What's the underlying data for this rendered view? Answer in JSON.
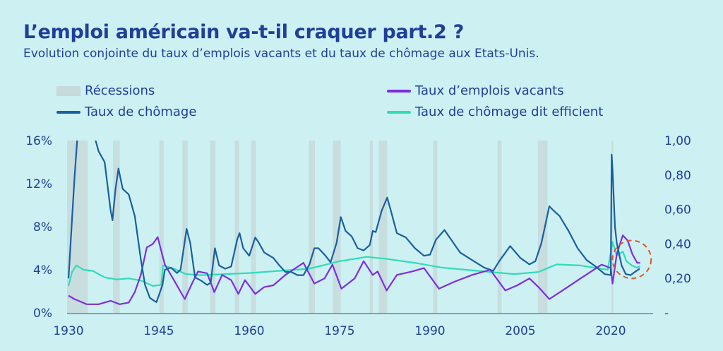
{
  "header": {
    "title": "L’emploi américain va-t-il craquer part.2 ?",
    "subtitle": "Evolution conjointe du taux d’emplois vacants et du taux de chômage aux Etats-Unis."
  },
  "colors": {
    "background": "#cdf1f2",
    "recession": "#c7d9da",
    "unemployment": "#1a5fa0",
    "vacancies": "#7b2fe0",
    "efficient": "#2fdcb8",
    "highlight": "#e2542a",
    "text": "#1f3f9a"
  },
  "chart_data": {
    "type": "line",
    "legend": [
      {
        "key": "recessions",
        "label": "Récessions",
        "marker": "band"
      },
      {
        "key": "vacancies",
        "label": "Taux d’emplois vacants",
        "marker": "line"
      },
      {
        "key": "unemployment",
        "label": "Taux de chômage",
        "marker": "line"
      },
      {
        "key": "efficient",
        "label": "Taux de chômage dit efficient",
        "marker": "line"
      }
    ],
    "legend_position": "top",
    "x_ticks": [
      "1930",
      "1945",
      "1960",
      "1975",
      "1990",
      "2005",
      "2020"
    ],
    "x_range": [
      1930,
      2025
    ],
    "y_left_ticks": [
      "0%",
      "4%",
      "8%",
      "12%",
      "16%"
    ],
    "y_left_range": [
      0,
      16
    ],
    "y_right_ticks": [
      "-",
      "0,20",
      "0,40",
      "0,60",
      "0,80",
      "1,00"
    ],
    "y_right_range": [
      0,
      1
    ],
    "recessions": [
      [
        1929.6,
        1933.2
      ],
      [
        1937.4,
        1938.5
      ],
      [
        1945.1,
        1945.8
      ],
      [
        1948.9,
        1949.8
      ],
      [
        1953.5,
        1954.4
      ],
      [
        1957.6,
        1958.3
      ],
      [
        1960.3,
        1961.1
      ],
      [
        1969.9,
        1970.9
      ],
      [
        1973.9,
        1975.2
      ],
      [
        1980.0,
        1980.5
      ],
      [
        1981.5,
        1982.9
      ],
      [
        1990.5,
        1991.2
      ],
      [
        2001.2,
        2001.9
      ],
      [
        2007.9,
        2009.5
      ],
      [
        2020.1,
        2020.4
      ]
    ],
    "series": [
      {
        "key": "unemployment",
        "name": "Taux de chômage",
        "axis": "left",
        "points": [
          [
            1930.0,
            3.2
          ],
          [
            1930.2,
            5.0
          ],
          [
            1930.6,
            8.8
          ],
          [
            1931.0,
            12.5
          ],
          [
            1931.5,
            16.5
          ],
          [
            1932.0,
            16.5
          ],
          [
            1933.0,
            16.5
          ],
          [
            1934.0,
            16.5
          ],
          [
            1934.5,
            16.0
          ],
          [
            1935.0,
            15.0
          ],
          [
            1936.0,
            14.0
          ],
          [
            1937.0,
            9.5
          ],
          [
            1937.3,
            8.6
          ],
          [
            1937.8,
            11.5
          ],
          [
            1938.3,
            13.4
          ],
          [
            1939.0,
            11.5
          ],
          [
            1940.0,
            11.0
          ],
          [
            1941.0,
            9.0
          ],
          [
            1942.0,
            5.0
          ],
          [
            1942.7,
            2.6
          ],
          [
            1943.5,
            1.4
          ],
          [
            1944.0,
            1.2
          ],
          [
            1944.6,
            1.0
          ],
          [
            1945.1,
            1.8
          ],
          [
            1945.6,
            2.6
          ],
          [
            1946.0,
            4.0
          ],
          [
            1947.0,
            4.2
          ],
          [
            1948.0,
            3.7
          ],
          [
            1948.6,
            4.0
          ],
          [
            1949.6,
            7.8
          ],
          [
            1950.2,
            6.5
          ],
          [
            1951.0,
            3.3
          ],
          [
            1952.0,
            3.0
          ],
          [
            1953.0,
            2.6
          ],
          [
            1953.6,
            2.8
          ],
          [
            1954.3,
            6.0
          ],
          [
            1955.0,
            4.4
          ],
          [
            1956.0,
            4.1
          ],
          [
            1957.0,
            4.3
          ],
          [
            1958.0,
            6.8
          ],
          [
            1958.4,
            7.4
          ],
          [
            1959.0,
            6.0
          ],
          [
            1960.0,
            5.3
          ],
          [
            1961.0,
            7.0
          ],
          [
            1961.5,
            6.6
          ],
          [
            1962.5,
            5.6
          ],
          [
            1964.0,
            5.1
          ],
          [
            1965.0,
            4.4
          ],
          [
            1966.0,
            3.8
          ],
          [
            1967.0,
            3.8
          ],
          [
            1968.0,
            3.5
          ],
          [
            1969.0,
            3.5
          ],
          [
            1970.0,
            4.5
          ],
          [
            1970.8,
            6.0
          ],
          [
            1971.5,
            6.0
          ],
          [
            1972.5,
            5.4
          ],
          [
            1973.5,
            4.7
          ],
          [
            1974.5,
            6.5
          ],
          [
            1975.2,
            8.9
          ],
          [
            1976.0,
            7.6
          ],
          [
            1977.0,
            7.1
          ],
          [
            1978.0,
            6.0
          ],
          [
            1979.0,
            5.8
          ],
          [
            1980.0,
            6.3
          ],
          [
            1980.5,
            7.6
          ],
          [
            1981.0,
            7.5
          ],
          [
            1982.0,
            9.5
          ],
          [
            1982.9,
            10.7
          ],
          [
            1983.5,
            9.5
          ],
          [
            1984.5,
            7.4
          ],
          [
            1986.0,
            7.0
          ],
          [
            1987.5,
            6.0
          ],
          [
            1989.0,
            5.3
          ],
          [
            1990.0,
            5.4
          ],
          [
            1991.0,
            6.8
          ],
          [
            1992.4,
            7.7
          ],
          [
            1993.5,
            6.8
          ],
          [
            1995.0,
            5.6
          ],
          [
            1997.0,
            4.9
          ],
          [
            1999.0,
            4.2
          ],
          [
            2000.5,
            3.9
          ],
          [
            2001.5,
            4.8
          ],
          [
            2003.3,
            6.2
          ],
          [
            2005.0,
            5.1
          ],
          [
            2006.5,
            4.5
          ],
          [
            2007.5,
            4.8
          ],
          [
            2008.5,
            6.5
          ],
          [
            2009.8,
            9.9
          ],
          [
            2010.5,
            9.5
          ],
          [
            2011.5,
            9.0
          ],
          [
            2013.0,
            7.6
          ],
          [
            2014.5,
            6.0
          ],
          [
            2016.0,
            4.9
          ],
          [
            2017.5,
            4.3
          ],
          [
            2019.0,
            3.6
          ],
          [
            2020.0,
            3.5
          ],
          [
            2020.15,
            14.7
          ],
          [
            2020.3,
            13.2
          ],
          [
            2020.7,
            8.0
          ],
          [
            2021.0,
            6.5
          ],
          [
            2021.8,
            4.4
          ],
          [
            2022.5,
            3.6
          ],
          [
            2023.3,
            3.5
          ],
          [
            2024.0,
            3.8
          ],
          [
            2024.8,
            4.1
          ]
        ]
      },
      {
        "key": "vacancies",
        "name": "Taux d’emplois vacants",
        "axis": "right",
        "points": [
          [
            1930.0,
            0.1
          ],
          [
            1931.0,
            0.08
          ],
          [
            1933.0,
            0.05
          ],
          [
            1935.0,
            0.05
          ],
          [
            1937.0,
            0.07
          ],
          [
            1938.5,
            0.05
          ],
          [
            1940.0,
            0.06
          ],
          [
            1941.0,
            0.12
          ],
          [
            1942.0,
            0.22
          ],
          [
            1943.0,
            0.38
          ],
          [
            1944.0,
            0.4
          ],
          [
            1944.8,
            0.44
          ],
          [
            1945.4,
            0.36
          ],
          [
            1946.0,
            0.28
          ],
          [
            1947.5,
            0.19
          ],
          [
            1949.3,
            0.08
          ],
          [
            1950.5,
            0.17
          ],
          [
            1951.5,
            0.24
          ],
          [
            1953.0,
            0.23
          ],
          [
            1954.2,
            0.12
          ],
          [
            1955.5,
            0.22
          ],
          [
            1957.0,
            0.19
          ],
          [
            1958.2,
            0.11
          ],
          [
            1959.3,
            0.19
          ],
          [
            1961.0,
            0.11
          ],
          [
            1962.5,
            0.15
          ],
          [
            1964.0,
            0.16
          ],
          [
            1966.0,
            0.22
          ],
          [
            1969.0,
            0.29
          ],
          [
            1970.8,
            0.17
          ],
          [
            1972.5,
            0.2
          ],
          [
            1973.8,
            0.28
          ],
          [
            1975.3,
            0.14
          ],
          [
            1977.5,
            0.2
          ],
          [
            1979.0,
            0.3
          ],
          [
            1980.5,
            0.22
          ],
          [
            1981.3,
            0.24
          ],
          [
            1982.8,
            0.13
          ],
          [
            1984.5,
            0.22
          ],
          [
            1987.0,
            0.24
          ],
          [
            1989.0,
            0.26
          ],
          [
            1991.5,
            0.14
          ],
          [
            1994.0,
            0.18
          ],
          [
            1997.0,
            0.22
          ],
          [
            2000.0,
            0.25
          ],
          [
            2002.5,
            0.13
          ],
          [
            2004.5,
            0.16
          ],
          [
            2006.5,
            0.2
          ],
          [
            2008.0,
            0.15
          ],
          [
            2009.8,
            0.08
          ],
          [
            2012.0,
            0.13
          ],
          [
            2015.0,
            0.2
          ],
          [
            2018.5,
            0.28
          ],
          [
            2020.0,
            0.26
          ],
          [
            2020.3,
            0.17
          ],
          [
            2021.0,
            0.34
          ],
          [
            2022.0,
            0.45
          ],
          [
            2022.8,
            0.42
          ],
          [
            2023.6,
            0.34
          ],
          [
            2024.4,
            0.29
          ],
          [
            2024.9,
            0.29
          ]
        ]
      },
      {
        "key": "efficient",
        "name": "Taux de chômage dit efficient",
        "axis": "left",
        "points": [
          [
            1930.0,
            2.5
          ],
          [
            1930.6,
            3.8
          ],
          [
            1931.3,
            4.4
          ],
          [
            1932.5,
            4.0
          ],
          [
            1934.0,
            3.9
          ],
          [
            1936.0,
            3.3
          ],
          [
            1938.0,
            3.1
          ],
          [
            1940.0,
            3.2
          ],
          [
            1942.0,
            3.0
          ],
          [
            1944.0,
            2.5
          ],
          [
            1945.4,
            2.6
          ],
          [
            1945.7,
            4.4
          ],
          [
            1947.5,
            4.1
          ],
          [
            1949.5,
            3.6
          ],
          [
            1952.0,
            3.5
          ],
          [
            1956.0,
            3.6
          ],
          [
            1960.0,
            3.7
          ],
          [
            1965.0,
            3.9
          ],
          [
            1970.0,
            4.1
          ],
          [
            1975.0,
            4.8
          ],
          [
            1979.5,
            5.2
          ],
          [
            1983.0,
            5.0
          ],
          [
            1988.0,
            4.6
          ],
          [
            1992.0,
            4.2
          ],
          [
            1996.0,
            4.0
          ],
          [
            2000.0,
            3.8
          ],
          [
            2004.0,
            3.6
          ],
          [
            2008.0,
            3.8
          ],
          [
            2011.0,
            4.5
          ],
          [
            2015.0,
            4.4
          ],
          [
            2019.5,
            4.0
          ],
          [
            2020.3,
            6.6
          ],
          [
            2021.0,
            5.3
          ],
          [
            2022.0,
            5.7
          ],
          [
            2022.6,
            4.8
          ],
          [
            2023.5,
            4.4
          ],
          [
            2024.3,
            4.2
          ],
          [
            2024.9,
            4.3
          ]
        ]
      }
    ],
    "annotation": {
      "type": "ellipse",
      "style": "dashed",
      "center": [
        2023.5,
        0.31
      ],
      "radius_years": 3.2,
      "radius_y": 0.11
    }
  }
}
